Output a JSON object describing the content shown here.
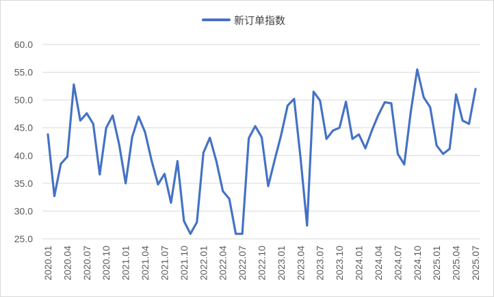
{
  "chart_data": {
    "type": "line",
    "title": "",
    "xlabel": "",
    "ylabel": "",
    "ylim": [
      25,
      60
    ],
    "yticks": [
      "25.0",
      "30.0",
      "35.0",
      "40.0",
      "45.0",
      "50.0",
      "55.0",
      "60.0"
    ],
    "grid": "horizontal",
    "legend_position": "top-center",
    "x_tick_labels": [
      "2020.01",
      "2020.04",
      "2020.07",
      "2020.10",
      "2021.01",
      "2021.04",
      "2021.07",
      "2021.10",
      "2022.01",
      "2022.04",
      "2022.07",
      "2022.10",
      "2023.01",
      "2023.04",
      "2023.07",
      "2023.10",
      "2024.01",
      "2024.04",
      "2024.07",
      "2024.10",
      "2025.01",
      "2025.04",
      "2025.07"
    ],
    "series": [
      {
        "name": "新订单指数",
        "color": "#4472C4",
        "x": [
          "2020.01",
          "2020.02",
          "2020.03",
          "2020.04",
          "2020.05",
          "2020.06",
          "2020.07",
          "2020.08",
          "2020.09",
          "2020.10",
          "2020.11",
          "2020.12",
          "2021.01",
          "2021.02",
          "2021.03",
          "2021.04",
          "2021.05",
          "2021.06",
          "2021.07",
          "2021.08",
          "2021.09",
          "2021.10",
          "2021.11",
          "2021.12",
          "2022.01",
          "2022.02",
          "2022.03",
          "2022.04",
          "2022.05",
          "2022.06",
          "2022.07",
          "2022.08",
          "2022.09",
          "2022.10",
          "2022.11",
          "2022.12",
          "2023.01",
          "2023.02",
          "2023.03",
          "2023.04",
          "2023.05",
          "2023.06",
          "2023.07",
          "2023.08",
          "2023.09",
          "2023.10",
          "2023.11",
          "2023.12",
          "2024.01",
          "2024.02",
          "2024.03",
          "2024.04",
          "2024.05",
          "2024.06",
          "2024.07",
          "2024.08",
          "2024.09",
          "2024.10",
          "2024.11",
          "2024.12",
          "2025.01",
          "2025.02",
          "2025.03",
          "2025.04",
          "2025.05",
          "2025.06",
          "2025.07"
        ],
        "values": [
          43.8,
          32.7,
          38.5,
          39.8,
          52.8,
          46.3,
          47.6,
          45.7,
          36.6,
          45.0,
          47.2,
          42.0,
          35.0,
          43.3,
          47.0,
          44.2,
          39.1,
          34.8,
          36.7,
          31.5,
          39.0,
          28.2,
          25.9,
          28.0,
          40.5,
          43.2,
          39.0,
          33.6,
          32.2,
          25.9,
          25.9,
          43.1,
          45.3,
          43.3,
          34.5,
          39.2,
          43.7,
          49.0,
          50.2,
          39.5,
          27.4,
          51.5,
          49.9,
          43.0,
          44.5,
          45.0,
          49.7,
          43.0,
          43.8,
          41.3,
          44.5,
          47.3,
          49.6,
          49.4,
          40.3,
          38.4,
          47.8,
          55.5,
          50.5,
          48.7,
          41.8,
          40.3,
          41.2,
          51.0,
          46.3,
          45.7,
          52.0
        ]
      }
    ]
  }
}
